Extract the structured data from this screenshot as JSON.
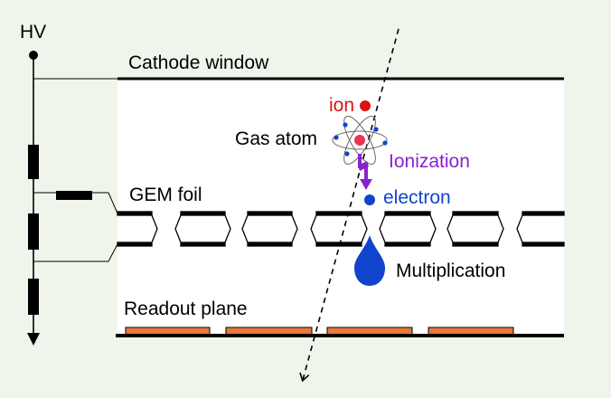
{
  "labels": {
    "hv": "HV",
    "cathode": "Cathode window",
    "gem_foil": "GEM foil",
    "readout": "Readout plane",
    "gas_atom": "Gas atom",
    "ion": "ion",
    "ionization": "Ionization",
    "electron": "electron",
    "multiplication": "Multiplication"
  },
  "colors": {
    "background": "#f0f5ec",
    "chamber": "#ffffff",
    "ion": "#dd1111",
    "electron": "#1144cc",
    "ionization": "#8822cc",
    "readout_pad": "#e8793a",
    "line": "#000000"
  }
}
